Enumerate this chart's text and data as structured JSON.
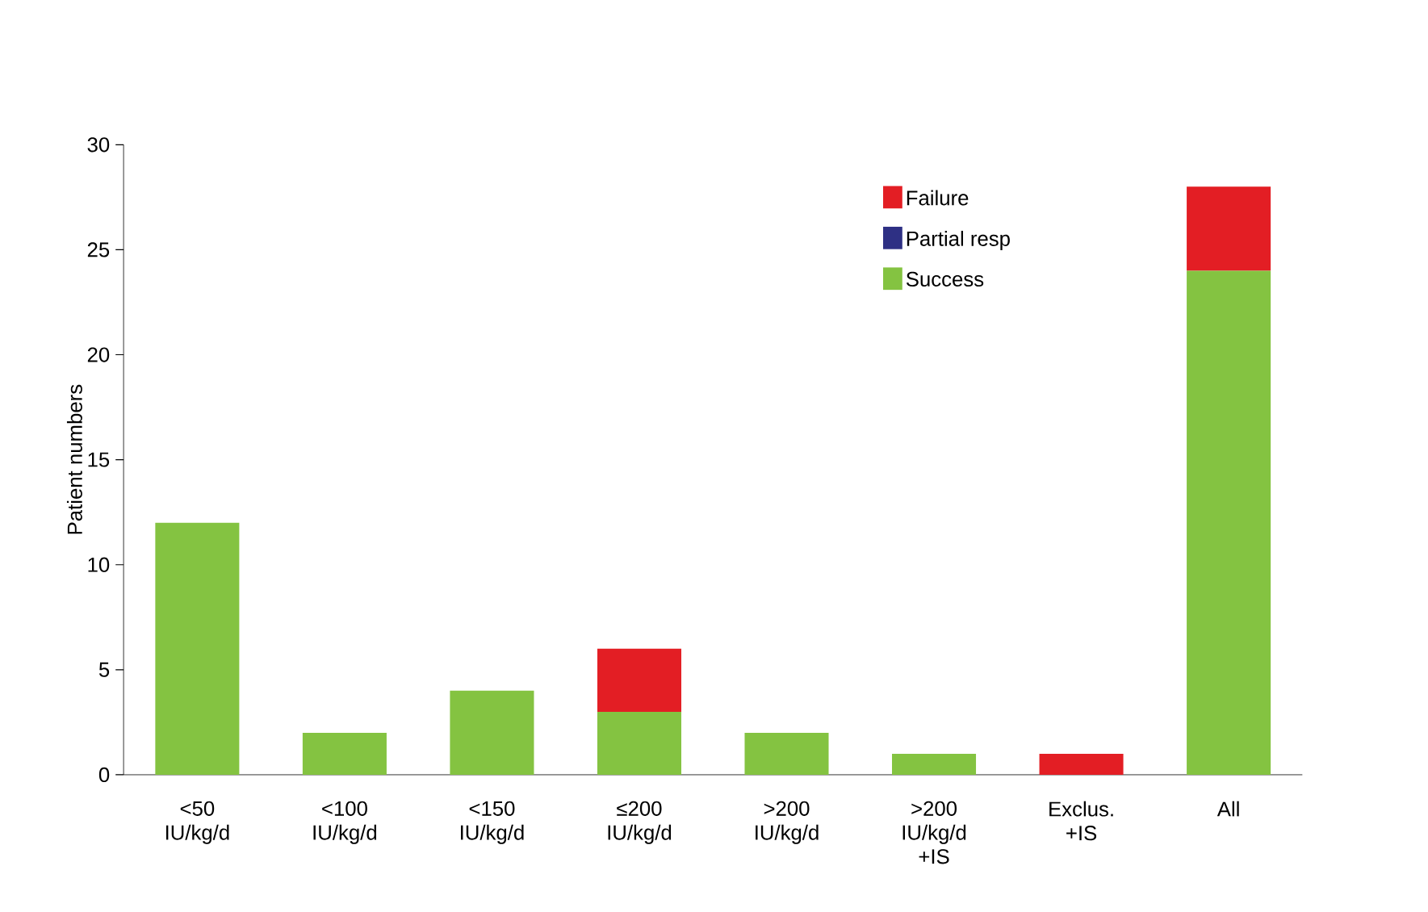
{
  "chart_data": {
    "type": "bar",
    "stacked": true,
    "ylabel": "Patient numbers",
    "categories": [
      "<50 IU/kg/d",
      "<100 IU/kg/d",
      "<150 IU/kg/d",
      "≤200 IU/kg/d",
      ">200 IU/kg/d",
      ">200 IU/kg/d +IS",
      "Exclus. +IS",
      "All"
    ],
    "series": [
      {
        "name": "Success",
        "color": "#84c341",
        "values": [
          12,
          2,
          4,
          3,
          2,
          1,
          0,
          24
        ]
      },
      {
        "name": "Partial resp",
        "color": "#2e3084",
        "values": [
          0,
          0,
          0,
          0,
          0,
          0,
          0,
          0
        ]
      },
      {
        "name": "Failure",
        "color": "#e31e24",
        "values": [
          0,
          0,
          0,
          3,
          0,
          0,
          1,
          4
        ]
      }
    ],
    "ylim": [
      0,
      30
    ],
    "yticks": [
      0,
      5,
      10,
      15,
      20,
      25,
      30
    ],
    "grid": false,
    "legend": "top right"
  }
}
